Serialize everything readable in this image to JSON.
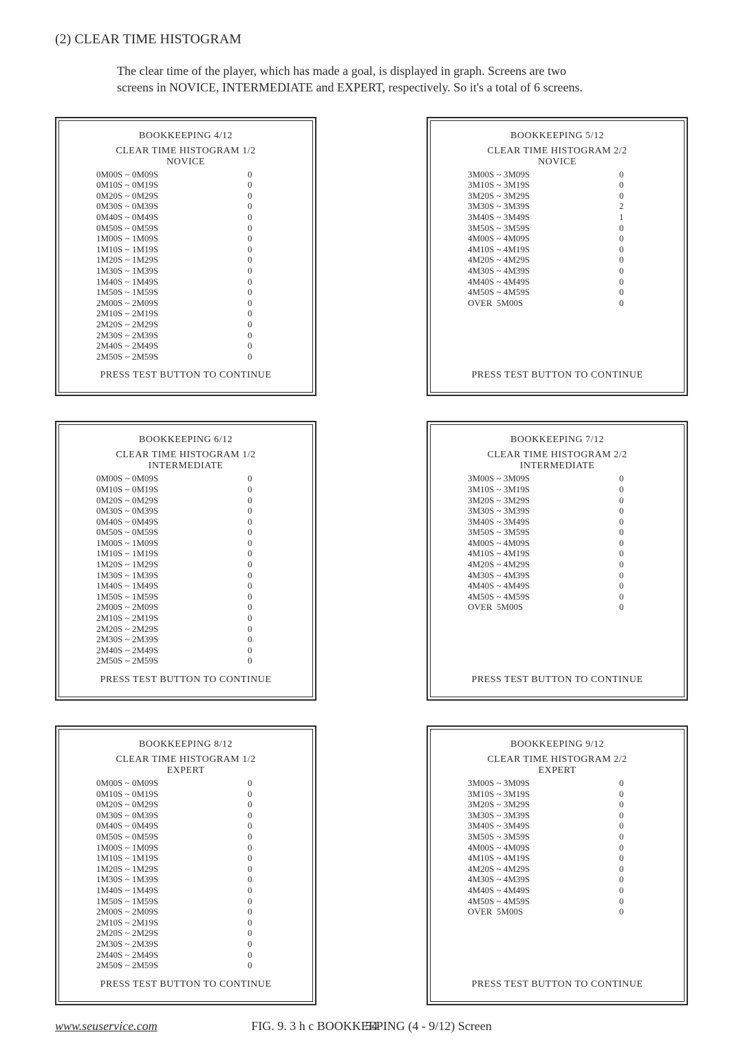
{
  "heading": "(2) CLEAR TIME HISTOGRAM",
  "intro_line1": "The clear time of the player, which has made a goal, is displayed in graph. Screens are two",
  "intro_line2": "screens in NOVICE, INTERMEDIATE and EXPERT, respectively. So it's a total of 6 screens.",
  "caption": "FIG. 9. 3 h c  BOOKKEEPING (4 - 9/12) Screen",
  "footer_site": "www.seuservice.com",
  "footer_page": "54",
  "continue_text": "PRESS TEST BUTTON TO CONTINUE",
  "font_family": "Times New Roman",
  "text_color": "#2a2a2a",
  "panel_border_color": "#2a2a2a",
  "background_color": "#ffffff",
  "ranges_long": [
    "0M00S ~ 0M09S",
    "0M10S ~ 0M19S",
    "0M20S ~ 0M29S",
    "0M30S ~ 0M39S",
    "0M40S ~ 0M49S",
    "0M50S ~ 0M59S",
    "1M00S ~ 1M09S",
    "1M10S ~ 1M19S",
    "1M20S ~ 1M29S",
    "1M30S ~ 1M39S",
    "1M40S ~ 1M49S",
    "1M50S ~ 1M59S",
    "2M00S ~ 2M09S",
    "2M10S ~ 2M19S",
    "2M20S ~ 2M29S",
    "2M30S ~ 2M39S",
    "2M40S ~ 2M49S",
    "2M50S ~ 2M59S"
  ],
  "ranges_short": [
    "3M00S ~ 3M09S",
    "3M10S ~ 3M19S",
    "3M20S ~ 3M29S",
    "3M30S ~ 3M39S",
    "3M40S ~ 3M49S",
    "3M50S ~ 3M59S",
    "4M00S ~ 4M09S",
    "4M10S ~ 4M19S",
    "4M20S ~ 4M29S",
    "4M30S ~ 4M39S",
    "4M40S ~ 4M49S",
    "4M50S ~ 4M59S",
    "OVER  5M00S"
  ],
  "panels": {
    "p4": {
      "title": "BOOKKEEPING 4/12",
      "sub": "CLEAR TIME HISTOGRAM 1/2",
      "level": "NOVICE",
      "kind": "long",
      "values": [
        0,
        0,
        0,
        0,
        0,
        0,
        0,
        0,
        0,
        0,
        0,
        0,
        0,
        0,
        0,
        0,
        0,
        0
      ]
    },
    "p5": {
      "title": "BOOKKEEPING 5/12",
      "sub": "CLEAR TIME HISTOGRAM 2/2",
      "level": "NOVICE",
      "kind": "short",
      "values": [
        0,
        0,
        0,
        2,
        1,
        0,
        0,
        0,
        0,
        0,
        0,
        0,
        0
      ]
    },
    "p6": {
      "title": "BOOKKEEPING 6/12",
      "sub": "CLEAR TIME HISTOGRAM 1/2",
      "level": "INTERMEDIATE",
      "kind": "long",
      "values": [
        0,
        0,
        0,
        0,
        0,
        0,
        0,
        0,
        0,
        0,
        0,
        0,
        0,
        0,
        0,
        0,
        0,
        0
      ]
    },
    "p7": {
      "title": "BOOKKEEPING 7/12",
      "sub": "CLEAR TIME HISTOGRAM 2/2",
      "level": "INTERMEDIATE",
      "kind": "short",
      "values": [
        0,
        0,
        0,
        0,
        0,
        0,
        0,
        0,
        0,
        0,
        0,
        0,
        0
      ]
    },
    "p8": {
      "title": "BOOKKEEPING 8/12",
      "sub": "CLEAR TIME HISTOGRAM 1/2",
      "level": "EXPERT",
      "kind": "long",
      "values": [
        0,
        0,
        0,
        0,
        0,
        0,
        0,
        0,
        0,
        0,
        0,
        0,
        0,
        0,
        0,
        0,
        0,
        0
      ]
    },
    "p9": {
      "title": "BOOKKEEPING 9/12",
      "sub": "CLEAR TIME HISTOGRAM 2/2",
      "level": "EXPERT",
      "kind": "short",
      "values": [
        0,
        0,
        0,
        0,
        0,
        0,
        0,
        0,
        0,
        0,
        0,
        0,
        0
      ]
    }
  }
}
